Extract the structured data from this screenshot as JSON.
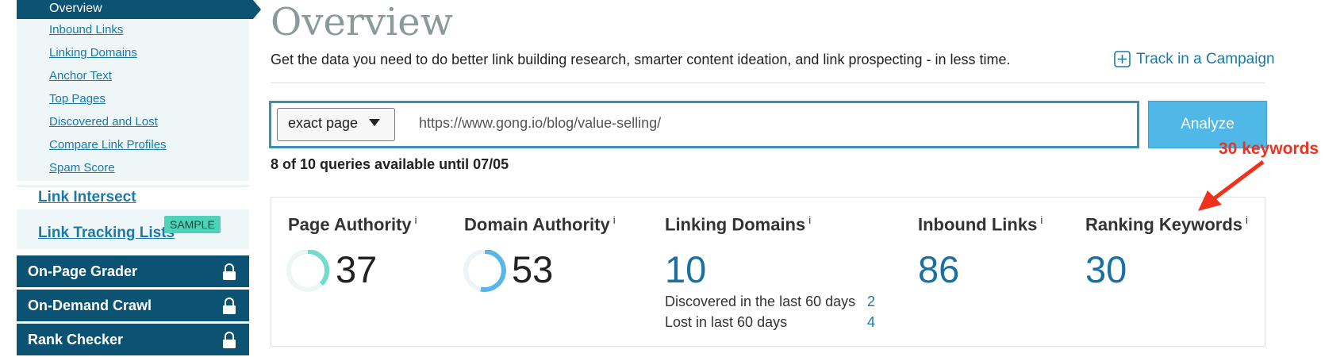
{
  "sidebar": {
    "active": "Overview",
    "subnav": [
      "Inbound Links",
      "Linking Domains",
      "Anchor Text",
      "Top Pages",
      "Discovered and Lost",
      "Compare Link Profiles",
      "Spam Score"
    ],
    "links": [
      "Link Intersect",
      "Link Tracking Lists"
    ],
    "badge": "SAMPLE",
    "locked": [
      "On-Page Grader",
      "On-Demand Crawl",
      "Rank Checker"
    ]
  },
  "header": {
    "title": "Overview",
    "description": "Get the data you need to do better link building research, smarter content ideation, and link prospecting - in less time.",
    "track": "Track in a Campaign"
  },
  "search": {
    "mode": "exact page",
    "url": "https://www.gong.io/blog/value-selling/",
    "button": "Analyze",
    "quota": "8 of 10 queries available until 07/05"
  },
  "annotation": "30 keywords",
  "info_icon": "i",
  "metrics": [
    {
      "label": "Page Authority",
      "value": 37
    },
    {
      "label": "Domain Authority",
      "value": 53
    },
    {
      "label": "Linking Domains",
      "value": 10,
      "details": [
        {
          "label": "Discovered in the last 60 days",
          "value": 2
        },
        {
          "label": "Lost in last 60 days",
          "value": 4
        }
      ]
    },
    {
      "label": "Inbound Links",
      "value": 86
    },
    {
      "label": "Ranking Keywords",
      "value": 30
    }
  ]
}
